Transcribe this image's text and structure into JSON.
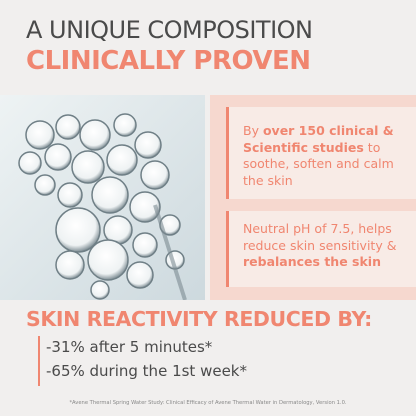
{
  "header": {
    "title": "A UNIQUE COMPOSITION",
    "subtitle": "CLINICALLY PROVEN"
  },
  "panel": {
    "items": [
      {
        "before": "By ",
        "bold": "over 150 clinical & Scientific studies",
        "after": " to soothe, soften and calm the skin"
      },
      {
        "before": "Neutral pH of 7.5, helps reduce skin sensitivity & ",
        "bold": "rebalances the skin"
      }
    ]
  },
  "results": {
    "heading": "SKIN REACTIVITY REDUCED BY:",
    "stats": [
      "-31% after 5 minutes*",
      "-65% during the 1st week*"
    ]
  },
  "footnote": "*Avene Thermal Spring Water Study: Clinical Efficacy of Avene Thermal Water in Dermatology, Version 1.0."
}
